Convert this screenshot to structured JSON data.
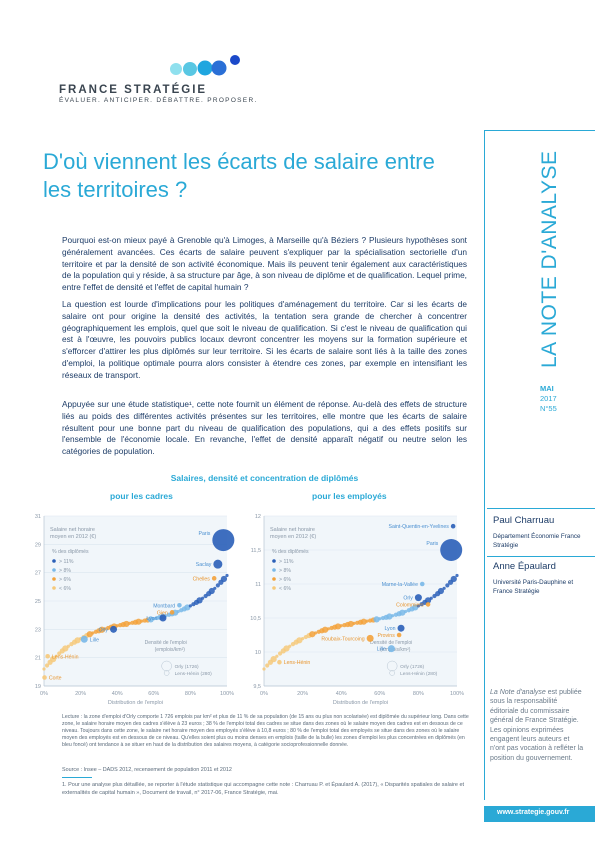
{
  "header": {
    "brand": "FRANCE STRATÉGIE",
    "tagline": "ÉVALUER. ANTICIPER. DÉBATTRE. PROPOSER.",
    "colors": {
      "accent": "#2aa9d6",
      "navy": "#1d3c67",
      "dot_light": "#59c7e3",
      "dot_blue": "#2a6fd6"
    }
  },
  "rail": {
    "series_title": "LA NOTE D'ANALYSE",
    "month": "MAI",
    "year": "2017",
    "number": "N°55",
    "authors": [
      {
        "name": "Paul Charruau",
        "affiliation": "Département Économie France Stratégie"
      },
      {
        "name": "Anne Épaulard",
        "affiliation": "Université Paris-Dauphine et France Stratégie"
      }
    ],
    "disclaimer_lead": "La Note d'analyse",
    "disclaimer": "est publiée sous la responsabilité éditoriale du commissaire général de France Stratégie. Les opinions exprimées engagent leurs auteurs et n'ont pas vocation à refléter la position du gouvernement.",
    "url": "www.strategie.gouv.fr"
  },
  "title": "D'où viennent les écarts de salaire entre les territoires ?",
  "paragraphs": [
    "Pourquoi est-on mieux payé à Grenoble qu'à Limoges, à Marseille qu'à Béziers ? Plusieurs hypothèses sont généralement avancées. Ces écarts de salaire peuvent s'expliquer par la spécialisation sectorielle d'un territoire et par la densité de son activité économique. Mais ils peuvent tenir également aux caractéristiques de la population qui y réside, à sa structure par âge, à son niveau de diplôme et de qualification. Lequel prime, entre l'effet de densité et l'effet de capital humain ?",
    "La question est lourde d'implications pour les politiques d'aménagement du territoire. Car si les écarts de salaire ont pour origine la densité des activités, la tentation sera grande de chercher à concentrer géographiquement les emplois, quel que soit le niveau de qualification. Si c'est le niveau de qualification qui est à l'œuvre, les pouvoirs publics locaux devront concentrer les moyens sur la formation supérieure et s'efforcer d'attirer les plus diplômés sur leur territoire. Si les écarts de salaire sont liés à la taille des zones d'emploi, la politique optimale pourra alors consister à étendre ces zones, par exemple en intensifiant les réseaux de transport.",
    "Appuyée sur une étude statistique¹, cette note fournit un élément de réponse. Au-delà des effets de structure liés au poids des différentes activités présentes sur les territoires, elle montre que les écarts de salaire résultent pour une bonne part du niveau de qualification des populations, qui a des effets positifs sur l'ensemble de l'économie locale. En revanche, l'effet de densité apparaît négatif ou neutre selon les catégories de population."
  ],
  "figure": {
    "title": "Salaires, densité et concentration de diplômés",
    "lecture": "Lecture : la zone d'emploi d'Orly comporte 1 726 emplois par km² et plus de 11 % de sa population (de 15 ans ou plus non scolarisée) est diplômée du supérieur long. Dans cette zone, le salaire horaire moyen des cadres s'élève à 23 euros ; 38 % de l'emploi total des cadres se situe dans des zones où le salaire moyen des cadres est en dessous de ce niveau. Toujours dans cette zone, le salaire net horaire moyen des employés s'élève à 10,8 euros ; 80 % de l'emploi total des employés se situe dans des zones où le salaire moyen des employés est en dessous de ce niveau. Qu'elles soient plus ou moins denses en emplois (taille de la bulle) les zones d'emploi les plus concentrées en diplômés (en bleu foncé) ont tendance à se situer en haut de la distribution des salaires moyens, à catégorie socioprofessionnelle donnée.",
    "source": "Source : Insee – DADS 2012, recensement de population 2011 et 2012"
  },
  "chart_data": [
    {
      "type": "scatter",
      "title": "pour les cadres",
      "ylabel": "Salaire net horaire moyen en 2012 (€)",
      "xlabel": "Distribution de l'emploi",
      "ylim": [
        19,
        31
      ],
      "yticks": [
        "19",
        "21",
        "23",
        "25",
        "27",
        "29",
        "31"
      ],
      "xticks": [
        "0%",
        "20%",
        "40%",
        "60%",
        "80%",
        "100%"
      ],
      "legend_title": "% des diplômés",
      "legend": [
        "> 11%",
        "> 8%",
        "> 6%",
        "< 6%"
      ],
      "size_legend": {
        "title": "Densité de l'emploi (emplois/km²)",
        "items": [
          "Orly (1726)",
          "Lens-Hénin (280)"
        ]
      },
      "points": [
        {
          "label": "Paris",
          "x": 98,
          "y": 29.3,
          "size": 5,
          "cls": 0
        },
        {
          "label": "Saclay",
          "x": 95,
          "y": 27.6,
          "size": 3,
          "cls": 0
        },
        {
          "label": "Chelles",
          "x": 93,
          "y": 26.6,
          "size": 1,
          "cls": 2
        },
        {
          "label": "Montbard",
          "x": 74,
          "y": 24.7,
          "size": 1,
          "cls": 1
        },
        {
          "label": "Gien",
          "x": 70,
          "y": 24.2,
          "size": 1,
          "cls": 2
        },
        {
          "label": "Lyon",
          "x": 65,
          "y": 23.8,
          "size": 2,
          "cls": 0
        },
        {
          "label": "Orly",
          "x": 38,
          "y": 23.0,
          "size": 2,
          "cls": 0
        },
        {
          "label": "Lille",
          "x": 22,
          "y": 22.3,
          "size": 2,
          "cls": 1
        },
        {
          "label": "Lens-Hénin",
          "x": 2,
          "y": 21.1,
          "size": 1,
          "cls": 3
        },
        {
          "label": "Corte",
          "x": 0.3,
          "y": 19.6,
          "size": 1,
          "cls": 3
        }
      ]
    },
    {
      "type": "scatter",
      "title": "pour les employés",
      "ylabel": "Salaire net horaire moyen en 2012 (€)",
      "xlabel": "Distribution de l'emploi",
      "ylim": [
        9.5,
        12
      ],
      "yticks": [
        "9,5",
        "10",
        "10,5",
        "11",
        "11,5",
        "12"
      ],
      "xticks": [
        "0%",
        "20%",
        "40%",
        "60%",
        "80%",
        "100%"
      ],
      "legend_title": "% des diplômés",
      "legend": [
        "> 11%",
        "> 8%",
        "> 6%",
        "< 6%"
      ],
      "size_legend": {
        "title": "Densité de l'emploi (emplois/km²)",
        "items": [
          "Orly (1726)",
          "Lens-Hénin (280)"
        ]
      },
      "points": [
        {
          "label": "Saint-Quentin-en-Yvelines",
          "x": 98,
          "y": 11.85,
          "size": 1,
          "cls": 0
        },
        {
          "label": "Paris",
          "x": 97,
          "y": 11.5,
          "size": 5,
          "cls": 0
        },
        {
          "label": "Marne-la-Vallée",
          "x": 82,
          "y": 11.0,
          "size": 1,
          "cls": 1
        },
        {
          "label": "Orly",
          "x": 80,
          "y": 10.8,
          "size": 2,
          "cls": 0
        },
        {
          "label": "Colommiers",
          "x": 85,
          "y": 10.7,
          "size": 1,
          "cls": 2
        },
        {
          "label": "Lyon",
          "x": 71,
          "y": 10.35,
          "size": 2,
          "cls": 0
        },
        {
          "label": "Provins",
          "x": 70,
          "y": 10.25,
          "size": 1,
          "cls": 2
        },
        {
          "label": "Roubaix-Tourcoing",
          "x": 55,
          "y": 10.2,
          "size": 2,
          "cls": 2
        },
        {
          "label": "Lille",
          "x": 66,
          "y": 10.05,
          "size": 2,
          "cls": 1
        },
        {
          "label": "Lens-Hénin",
          "x": 8,
          "y": 9.85,
          "size": 1,
          "cls": 3
        }
      ]
    }
  ],
  "footnote": "1. Pour une analyse plus détaillée, se reporter à l'étude statistique qui accompagne cette note : Charruau P. et Épaulard A. (2017), « Disparités spatiales de salaire et externalités de capital humain », Document de travail, n° 2017-06, France Stratégie, mai."
}
